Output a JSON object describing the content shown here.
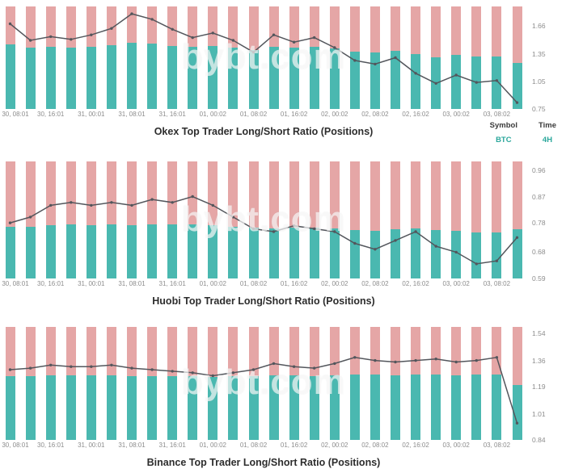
{
  "watermark": "bybt.com",
  "meta": {
    "symbol_label": "Symbol",
    "symbol_value": "BTC",
    "time_label": "Time",
    "time_value": "4H"
  },
  "colors": {
    "long_bar": "#4ab8b0",
    "short_bar": "#e5a6a6",
    "line": "#53565c",
    "accent": "#2aa79b",
    "axis_text": "#8d8d8d",
    "title_text": "#2d2d2d"
  },
  "chart_data": [
    {
      "type": "bar",
      "subtype": "stacked-100pct-with-ratio-line",
      "title": "Okex Top Trader Long/Short Ratio (Positions)",
      "legend_position": "none",
      "grid": false,
      "y_axis_side": "right",
      "y_ticks": [
        "1.66",
        "1.35",
        "1.05",
        "0.75"
      ],
      "ylim": [
        0.75,
        1.87
      ],
      "x_tick_labels": [
        "30, 08:01",
        "30, 16:01",
        "31, 00:01",
        "31, 08:01",
        "31, 16:01",
        "01, 00:02",
        "01, 08:02",
        "01, 16:02",
        "02, 00:02",
        "02, 08:02",
        "02, 16:02",
        "03, 00:02",
        "03, 08:02"
      ],
      "bars_per_label": 2,
      "series": [
        {
          "name": "long-short-ratio-line",
          "values": [
            1.68,
            1.5,
            1.54,
            1.51,
            1.56,
            1.63,
            1.79,
            1.73,
            1.62,
            1.53,
            1.58,
            1.5,
            1.37,
            1.56,
            1.48,
            1.53,
            1.42,
            1.28,
            1.24,
            1.31,
            1.14,
            1.03,
            1.12,
            1.04,
            1.06,
            0.82
          ]
        },
        {
          "name": "long-percent-teal",
          "values": [
            62.7,
            60.0,
            60.6,
            60.2,
            60.9,
            62.0,
            64.2,
            63.4,
            61.8,
            60.5,
            61.2,
            60.0,
            57.8,
            60.9,
            59.7,
            60.5,
            58.7,
            56.1,
            55.4,
            56.7,
            53.3,
            50.7,
            52.8,
            51.0,
            51.5,
            45.1
          ]
        }
      ]
    },
    {
      "type": "bar",
      "subtype": "stacked-100pct-with-ratio-line",
      "title": "Huobi Top Trader Long/Short Ratio (Positions)",
      "legend_position": "none",
      "grid": false,
      "y_axis_side": "right",
      "y_ticks": [
        "0.96",
        "0.87",
        "0.78",
        "0.68",
        "0.59"
      ],
      "ylim": [
        0.59,
        0.99
      ],
      "x_tick_labels": [
        "30, 08:01",
        "30, 16:01",
        "31, 00:01",
        "31, 08:01",
        "31, 16:01",
        "01, 00:02",
        "01, 08:02",
        "01, 16:02",
        "02, 00:02",
        "02, 08:02",
        "02, 16:02",
        "03, 00:02",
        "03, 08:02"
      ],
      "bars_per_label": 2,
      "series": [
        {
          "name": "long-short-ratio-line",
          "values": [
            0.78,
            0.8,
            0.84,
            0.85,
            0.84,
            0.85,
            0.84,
            0.86,
            0.85,
            0.87,
            0.84,
            0.8,
            0.76,
            0.75,
            0.77,
            0.76,
            0.75,
            0.71,
            0.69,
            0.72,
            0.75,
            0.7,
            0.68,
            0.64,
            0.65,
            0.73
          ]
        },
        {
          "name": "long-percent-teal",
          "values": [
            43.8,
            44.4,
            45.7,
            45.9,
            45.7,
            45.9,
            45.7,
            46.2,
            45.9,
            46.5,
            45.7,
            44.4,
            43.2,
            42.9,
            43.5,
            43.2,
            42.9,
            41.5,
            40.8,
            41.9,
            42.9,
            41.2,
            40.5,
            39.0,
            39.4,
            42.2
          ]
        }
      ]
    },
    {
      "type": "bar",
      "subtype": "stacked-100pct-with-ratio-line",
      "title": "Binance Top Trader Long/Short Ratio (Positions)",
      "legend_position": "none",
      "grid": false,
      "y_axis_side": "right",
      "y_ticks": [
        "1.54",
        "1.36",
        "1.19",
        "1.01",
        "0.84"
      ],
      "ylim": [
        0.84,
        1.58
      ],
      "x_tick_labels": [
        "30, 08:01",
        "30, 16:01",
        "31, 00:01",
        "31, 08:01",
        "31, 16:01",
        "01, 00:02",
        "01, 08:02",
        "01, 16:02",
        "02, 00:02",
        "02, 08:02",
        "02, 16:02",
        "03, 00:02",
        "03, 08:02"
      ],
      "bars_per_label": 2,
      "series": [
        {
          "name": "long-short-ratio-line",
          "values": [
            1.3,
            1.31,
            1.33,
            1.32,
            1.32,
            1.33,
            1.31,
            1.3,
            1.29,
            1.28,
            1.26,
            1.28,
            1.3,
            1.34,
            1.32,
            1.31,
            1.34,
            1.38,
            1.36,
            1.35,
            1.36,
            1.37,
            1.35,
            1.36,
            1.38,
            0.95
          ]
        },
        {
          "name": "long-percent-teal",
          "values": [
            56.5,
            56.7,
            57.1,
            56.9,
            56.9,
            57.1,
            56.7,
            56.5,
            56.3,
            56.1,
            55.8,
            56.1,
            56.5,
            57.3,
            56.9,
            56.7,
            57.3,
            58.0,
            57.6,
            57.4,
            57.6,
            57.8,
            57.4,
            57.6,
            58.0,
            48.7
          ]
        }
      ]
    }
  ]
}
